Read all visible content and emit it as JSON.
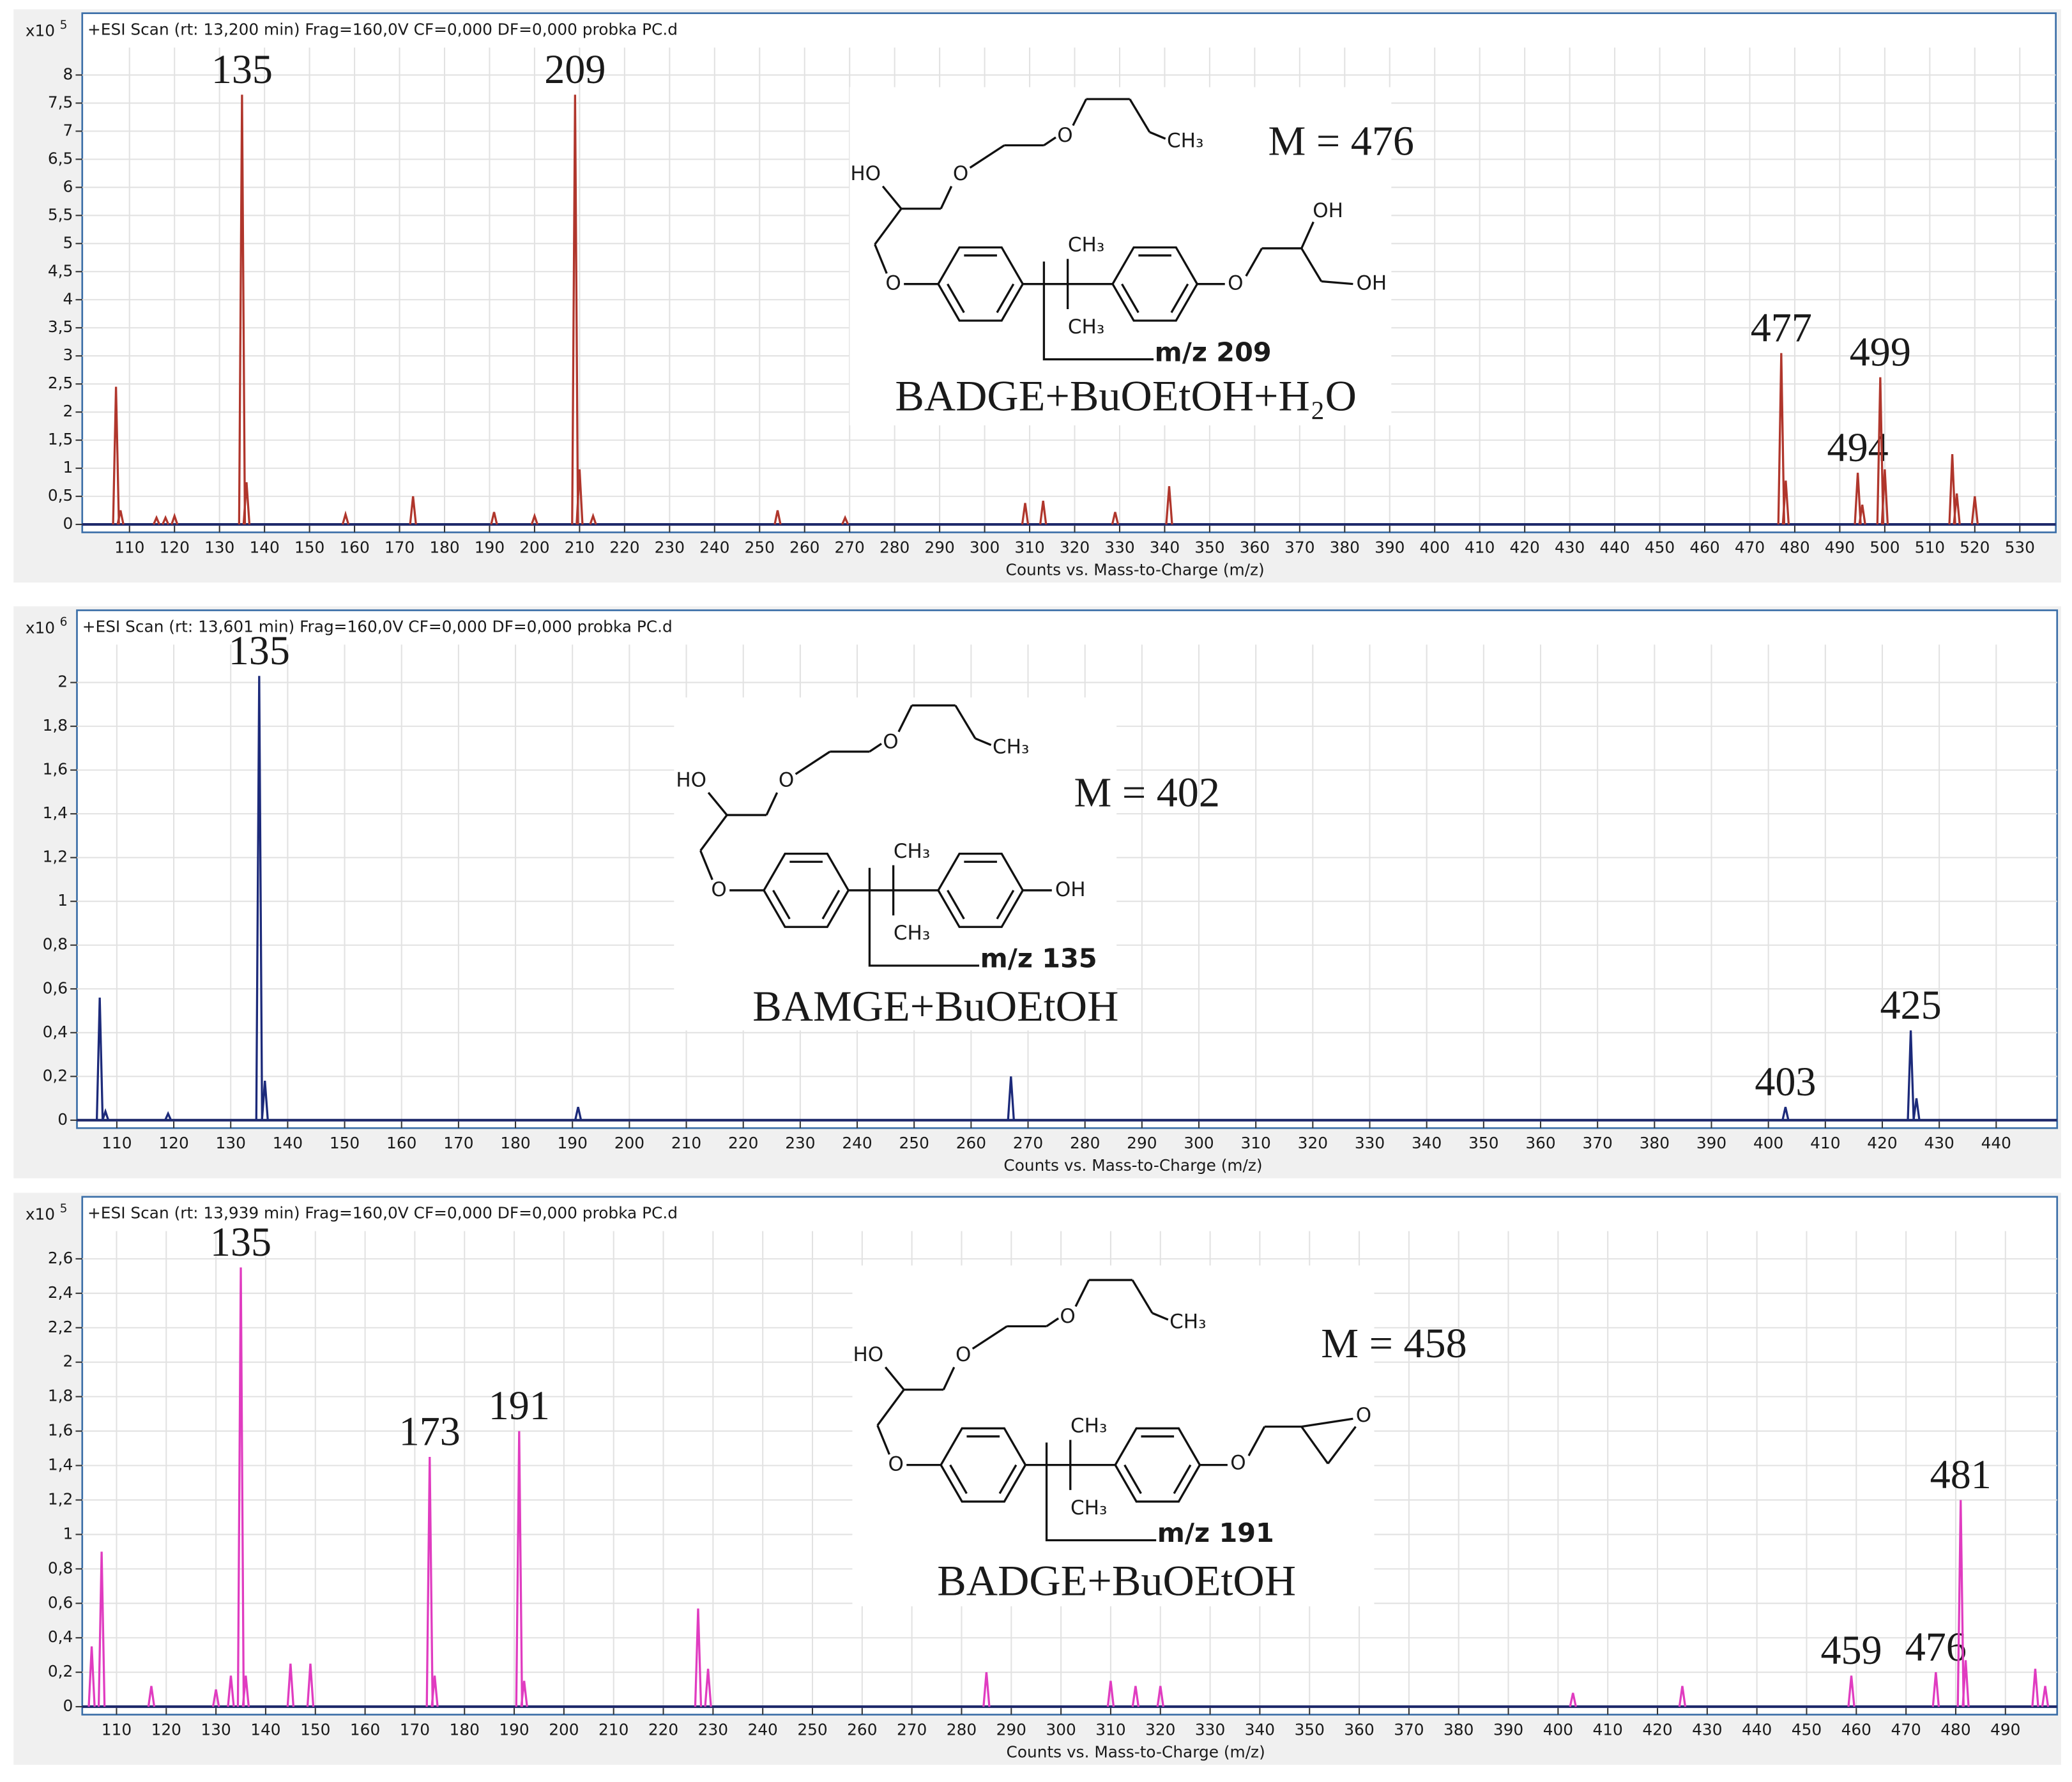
{
  "chart_data": [
    {
      "type": "stem",
      "header": "+ESI Scan (rt: 13,200 min) Frag=160,0V CF=0,000 DF=0,000 probka PC.d",
      "y_unit": "x10",
      "y_exponent": "5",
      "x_label": "Counts vs. Mass-to-Charge (m/z)",
      "color": "#b0362c",
      "grid": true,
      "xlim": [
        99.5,
        538
      ],
      "xticks": [
        110,
        120,
        130,
        140,
        150,
        160,
        170,
        180,
        190,
        200,
        210,
        220,
        230,
        240,
        250,
        260,
        270,
        280,
        290,
        300,
        310,
        320,
        330,
        340,
        350,
        360,
        370,
        380,
        390,
        400,
        410,
        420,
        430,
        440,
        450,
        460,
        470,
        480,
        490,
        500,
        510,
        520,
        530
      ],
      "ylim": [
        0,
        9.1
      ],
      "yticks": [
        0,
        {
          "value": 0.5,
          "label": "0,5"
        },
        1,
        {
          "value": 1.5,
          "label": "1,5"
        },
        2,
        {
          "value": 2.5,
          "label": "2,5"
        },
        3,
        {
          "value": 3.5,
          "label": "3,5"
        },
        4,
        {
          "value": 4.5,
          "label": "4,5"
        },
        5,
        {
          "value": 5.5,
          "label": "5,5"
        },
        6,
        {
          "value": 6.5,
          "label": "6,5"
        },
        7,
        {
          "value": 7.5,
          "label": "7,5"
        },
        8
      ],
      "x": [
        107,
        108,
        116,
        118,
        120,
        135,
        136,
        158,
        173,
        191,
        200,
        209,
        210,
        213,
        254,
        269,
        309,
        313,
        329,
        341,
        477,
        478,
        494,
        495,
        499,
        500,
        515,
        516,
        520
      ],
      "values": [
        2.45,
        0.25,
        0.12,
        0.12,
        0.15,
        7.65,
        0.75,
        0.18,
        0.5,
        0.22,
        0.15,
        7.65,
        0.98,
        0.15,
        0.25,
        0.12,
        0.38,
        0.42,
        0.22,
        0.68,
        3.05,
        0.78,
        0.92,
        0.35,
        2.62,
        0.98,
        1.25,
        0.55,
        0.5
      ],
      "labels": [
        null,
        null,
        null,
        null,
        null,
        "135",
        null,
        null,
        null,
        null,
        null,
        "209",
        null,
        null,
        null,
        null,
        null,
        null,
        null,
        null,
        "477",
        null,
        "494",
        null,
        "499",
        null,
        null,
        null,
        null
      ],
      "structure": {
        "atoms": [
          "HO",
          "O",
          "O",
          "CH₃",
          "O",
          "CH₃",
          "CH₃",
          "O",
          "OH",
          "OH"
        ],
        "fragment": "m/z 209",
        "mass": "M = 476",
        "name": "BADGE+BuOEtOH+H₂O"
      }
    },
    {
      "type": "stem",
      "header": "+ESI Scan (rt: 13,601 min) Frag=160,0V CF=0,000 DF=0,000 probka PC.d",
      "y_unit": "x10",
      "y_exponent": "6",
      "x_label": "Counts vs. Mass-to-Charge (m/z)",
      "color": "#1c2a7a",
      "grid": true,
      "xlim": [
        103,
        450.7
      ],
      "xticks": [
        110,
        120,
        130,
        140,
        150,
        160,
        170,
        180,
        190,
        200,
        210,
        220,
        230,
        240,
        250,
        260,
        270,
        280,
        290,
        300,
        310,
        320,
        330,
        340,
        350,
        360,
        370,
        380,
        390,
        400,
        410,
        420,
        430,
        440
      ],
      "ylim": [
        0,
        2.33
      ],
      "yticks": [
        0,
        {
          "value": 0.2,
          "label": "0,2"
        },
        {
          "value": 0.4,
          "label": "0,4"
        },
        {
          "value": 0.6,
          "label": "0,6"
        },
        {
          "value": 0.8,
          "label": "0,8"
        },
        1,
        {
          "value": 1.2,
          "label": "1,2"
        },
        {
          "value": 1.4,
          "label": "1,4"
        },
        {
          "value": 1.6,
          "label": "1,6"
        },
        {
          "value": 1.8,
          "label": "1,8"
        },
        2
      ],
      "x": [
        107,
        108,
        119,
        135,
        136,
        191,
        267,
        403,
        425,
        426
      ],
      "values": [
        0.56,
        0.04,
        0.03,
        2.03,
        0.18,
        0.06,
        0.2,
        0.06,
        0.41,
        0.1
      ],
      "labels": [
        null,
        null,
        null,
        "135",
        null,
        null,
        null,
        "403",
        "425",
        null
      ],
      "structure": {
        "atoms": [
          "HO",
          "O",
          "O",
          "CH₃",
          "O",
          "CH₃",
          "CH₃",
          "OH"
        ],
        "fragment": "m/z 135",
        "mass": "M = 402",
        "name": "BAMGE+BuOEtOH"
      }
    },
    {
      "type": "stem",
      "header": "+ESI Scan (rt: 13,939 min) Frag=160,0V CF=0,000 DF=0,000 probka PC.d",
      "y_unit": "x10",
      "y_exponent": "5",
      "x_label": "Counts vs. Mass-to-Charge (m/z)",
      "color": "#e03cc0",
      "grid": true,
      "xlim": [
        103.1,
        500.4
      ],
      "xticks": [
        110,
        120,
        130,
        140,
        150,
        160,
        170,
        180,
        190,
        200,
        210,
        220,
        230,
        240,
        250,
        260,
        270,
        280,
        290,
        300,
        310,
        320,
        330,
        340,
        350,
        360,
        370,
        380,
        390,
        400,
        410,
        420,
        430,
        440,
        450,
        460,
        470,
        480,
        490
      ],
      "ylim": [
        0,
        2.96
      ],
      "yticks": [
        0,
        {
          "value": 0.2,
          "label": "0,2"
        },
        {
          "value": 0.4,
          "label": "0,4"
        },
        {
          "value": 0.6,
          "label": "0,6"
        },
        {
          "value": 0.8,
          "label": "0,8"
        },
        1,
        {
          "value": 1.2,
          "label": "1,2"
        },
        {
          "value": 1.4,
          "label": "1,4"
        },
        {
          "value": 1.6,
          "label": "1,6"
        },
        {
          "value": 1.8,
          "label": "1,8"
        },
        2,
        {
          "value": 2.2,
          "label": "2,2"
        },
        {
          "value": 2.4,
          "label": "2,4"
        },
        {
          "value": 2.6,
          "label": "2,6"
        }
      ],
      "x": [
        105,
        107,
        117,
        130,
        133,
        135,
        136,
        145,
        149,
        173,
        174,
        191,
        192,
        227,
        229,
        285,
        310,
        315,
        320,
        403,
        425,
        459,
        476,
        481,
        482,
        496,
        498
      ],
      "values": [
        0.35,
        0.9,
        0.12,
        0.1,
        0.18,
        2.55,
        0.18,
        0.25,
        0.25,
        1.45,
        0.18,
        1.6,
        0.15,
        0.57,
        0.22,
        0.2,
        0.15,
        0.12,
        0.12,
        0.08,
        0.12,
        0.18,
        0.2,
        1.2,
        0.27,
        0.22,
        0.12
      ],
      "labels": [
        null,
        null,
        null,
        null,
        null,
        "135",
        null,
        null,
        null,
        "173",
        null,
        "191",
        null,
        null,
        null,
        null,
        null,
        null,
        null,
        null,
        null,
        "459",
        "476",
        "481",
        null,
        null,
        null
      ],
      "structure": {
        "atoms": [
          "HO",
          "O",
          "O",
          "CH₃",
          "O",
          "CH₃",
          "CH₃",
          "O",
          "O"
        ],
        "fragment": "m/z 191",
        "mass": "M = 458",
        "name": "BADGE+BuOEtOH"
      }
    }
  ]
}
